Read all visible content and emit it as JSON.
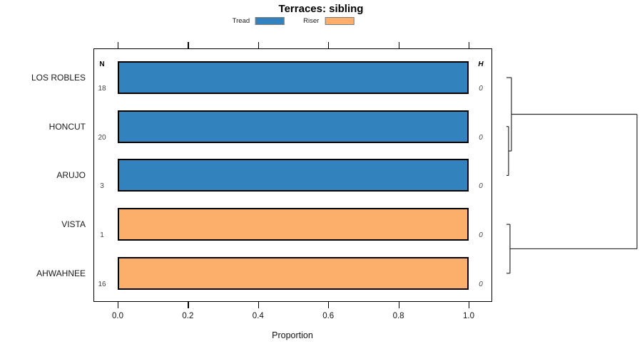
{
  "title": "Terraces: sibling",
  "legend": {
    "items": [
      {
        "label": "Tread",
        "color": "#3182BD"
      },
      {
        "label": "Riser",
        "color": "#FCAE6B"
      }
    ]
  },
  "columns": {
    "n_header": "N",
    "h_header": "H"
  },
  "x_axis": {
    "label": "Proportion",
    "ticks": [
      0,
      0.2,
      0.4,
      0.6,
      0.8,
      1.0
    ],
    "tick_labels": [
      "0.0",
      "0.2",
      "0.4",
      "0.6",
      "0.8",
      "1.0"
    ],
    "range": [
      0,
      1
    ]
  },
  "chart_data": {
    "type": "bar",
    "orientation": "horizontal",
    "title": "Terraces: sibling",
    "xlabel": "Proportion",
    "xlim": [
      0,
      1
    ],
    "grid": false,
    "legend_position": "top",
    "categories": [
      "LOS ROBLES",
      "HONCUT",
      "ARUJO",
      "VISTA",
      "AHWAHNEE"
    ],
    "proportions": [
      1.0,
      1.0,
      1.0,
      1.0,
      1.0
    ],
    "series": [
      {
        "name": "Tread",
        "color": "#3182BD",
        "values": [
          1,
          1,
          1,
          0,
          0
        ]
      },
      {
        "name": "Riser",
        "color": "#FCAE6B",
        "values": [
          0,
          0,
          0,
          1,
          1
        ]
      }
    ],
    "N": [
      18,
      20,
      3,
      1,
      16
    ],
    "H": [
      0,
      0,
      0,
      0,
      0
    ],
    "dendrogram": {
      "leaves": [
        "LOS ROBLES",
        "HONCUT",
        "ARUJO",
        "VISTA",
        "AHWAHNEE"
      ],
      "merges": [
        {
          "a": "leaf-1",
          "b": "leaf-2",
          "height": 0.016
        },
        {
          "a": "leaf-0",
          "b": "merge-0",
          "height": 0.038
        },
        {
          "a": "leaf-3",
          "b": "leaf-4",
          "height": 0.027
        },
        {
          "a": "merge-1",
          "b": "merge-2",
          "height": 1.0
        }
      ]
    }
  }
}
